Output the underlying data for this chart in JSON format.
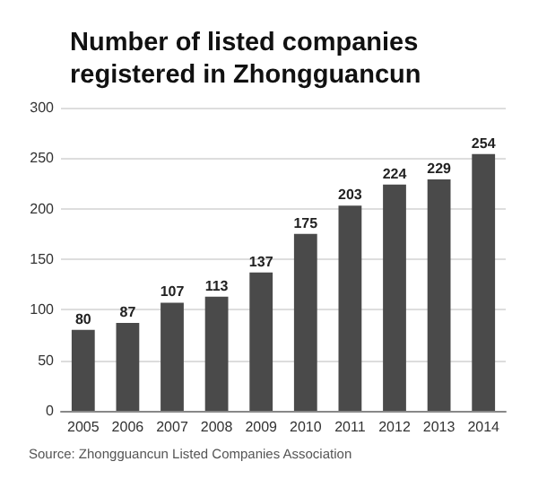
{
  "chart_data": {
    "type": "bar",
    "title": "Number of listed companies\nregistered in Zhongguancun",
    "categories": [
      "2005",
      "2006",
      "2007",
      "2008",
      "2009",
      "2010",
      "2011",
      "2012",
      "2013",
      "2014"
    ],
    "values": [
      80,
      87,
      107,
      113,
      137,
      175,
      203,
      224,
      229,
      254
    ],
    "color": "#4a4a4a",
    "ylim": [
      0,
      300
    ],
    "yticks": [
      0,
      50,
      100,
      150,
      200,
      250,
      300
    ],
    "grid": "y",
    "data_labels": true,
    "annotations": [
      "Source: Zhongguancun Listed Companies Association"
    ]
  }
}
